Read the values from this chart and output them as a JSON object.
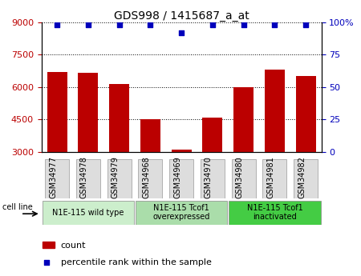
{
  "title": "GDS998 / 1415687_a_at",
  "samples": [
    "GSM34977",
    "GSM34978",
    "GSM34979",
    "GSM34968",
    "GSM34969",
    "GSM34970",
    "GSM34980",
    "GSM34981",
    "GSM34982"
  ],
  "counts": [
    6700,
    6650,
    6150,
    4500,
    3100,
    4600,
    6000,
    6800,
    6500
  ],
  "percentiles": [
    98,
    98,
    98,
    98,
    92,
    98,
    98,
    98,
    98
  ],
  "ylim_left": [
    3000,
    9000
  ],
  "ylim_right": [
    0,
    100
  ],
  "yticks_left": [
    3000,
    4500,
    6000,
    7500,
    9000
  ],
  "yticks_right": [
    0,
    25,
    50,
    75,
    100
  ],
  "bar_color": "#bb0000",
  "dot_color": "#0000bb",
  "grid_color": "#000000",
  "groups": [
    {
      "label": "N1E-115 wild type",
      "start": 0,
      "end": 3,
      "color": "#cceecc"
    },
    {
      "label": "N1E-115 Tcof1\noverexpressed",
      "start": 3,
      "end": 6,
      "color": "#aaddaa"
    },
    {
      "label": "N1E-115 Tcof1\ninactivated",
      "start": 6,
      "end": 9,
      "color": "#44cc44"
    }
  ],
  "cell_line_label": "cell line",
  "legend_count_text": "count",
  "legend_percentile_text": "percentile rank within the sample",
  "title_fontsize": 10,
  "tick_fontsize": 8,
  "sample_fontsize": 7,
  "group_fontsize": 7
}
